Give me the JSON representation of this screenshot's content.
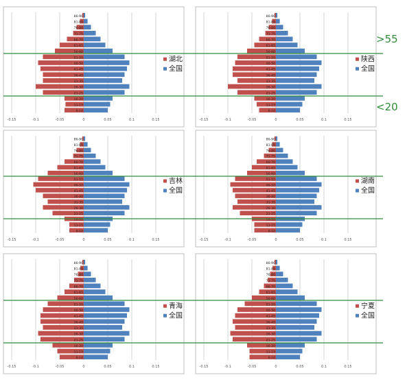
{
  "age_groups": [
    "0-10",
    "11-15",
    "16-20",
    "21-25",
    "26-30",
    "31-35",
    "36-40",
    "41-45",
    "46-50",
    "51-55",
    "56-60",
    "61-65",
    "66-70",
    "71-75",
    "76-80",
    "81-85",
    "86-90"
  ],
  "x_ticks": [
    "-0.15",
    "-0.1",
    "-0.05",
    "0",
    "0.05",
    "0.1",
    "0.15"
  ],
  "annotations": {
    "upper": ">55",
    "lower": "<20"
  },
  "colors": {
    "province": "#c0504d",
    "national": "#4f81bd",
    "ref_line": "#2e8b3a",
    "grid": "#cccccc",
    "frame": "#bfbfbf"
  },
  "chart_data": [
    {
      "type": "bar",
      "orientation": "horizontal-pyramid",
      "xlim": [
        -0.15,
        0.15
      ],
      "series": [
        {
          "name": "湖北",
          "values": [
            -0.04,
            -0.038,
            -0.04,
            -0.085,
            -0.1,
            -0.085,
            -0.085,
            -0.09,
            -0.095,
            -0.085,
            -0.06,
            -0.05,
            -0.035,
            -0.022,
            -0.015,
            -0.008,
            -0.003
          ]
        },
        {
          "name": "全国",
          "values": [
            0.05,
            0.055,
            0.06,
            0.085,
            0.095,
            0.08,
            0.085,
            0.09,
            0.095,
            0.085,
            0.06,
            0.045,
            0.035,
            0.025,
            0.015,
            0.008,
            0.003
          ]
        }
      ]
    },
    {
      "type": "bar",
      "orientation": "horizontal-pyramid",
      "xlim": [
        -0.15,
        0.15
      ],
      "series": [
        {
          "name": "陕西",
          "values": [
            -0.035,
            -0.04,
            -0.045,
            -0.08,
            -0.1,
            -0.08,
            -0.09,
            -0.09,
            -0.085,
            -0.08,
            -0.06,
            -0.045,
            -0.035,
            -0.022,
            -0.015,
            -0.008,
            -0.003
          ]
        },
        {
          "name": "全国",
          "values": [
            0.05,
            0.055,
            0.06,
            0.085,
            0.095,
            0.08,
            0.085,
            0.09,
            0.095,
            0.085,
            0.06,
            0.045,
            0.035,
            0.025,
            0.015,
            0.008,
            0.003
          ]
        }
      ]
    },
    {
      "type": "bar",
      "orientation": "horizontal-pyramid",
      "xlim": [
        -0.15,
        0.15
      ],
      "series": [
        {
          "name": "吉林",
          "values": [
            -0.03,
            -0.03,
            -0.04,
            -0.065,
            -0.085,
            -0.075,
            -0.085,
            -0.1,
            -0.105,
            -0.095,
            -0.075,
            -0.055,
            -0.04,
            -0.022,
            -0.015,
            -0.008,
            -0.003
          ]
        },
        {
          "name": "全国",
          "values": [
            0.05,
            0.055,
            0.06,
            0.085,
            0.095,
            0.08,
            0.085,
            0.09,
            0.095,
            0.085,
            0.06,
            0.045,
            0.035,
            0.025,
            0.015,
            0.008,
            0.003
          ]
        }
      ]
    },
    {
      "type": "bar",
      "orientation": "horizontal-pyramid",
      "xlim": [
        -0.15,
        0.15
      ],
      "series": [
        {
          "name": "湖南",
          "values": [
            -0.045,
            -0.045,
            -0.05,
            -0.075,
            -0.09,
            -0.08,
            -0.085,
            -0.09,
            -0.095,
            -0.085,
            -0.06,
            -0.05,
            -0.04,
            -0.025,
            -0.015,
            -0.008,
            -0.003
          ]
        },
        {
          "name": "全国",
          "values": [
            0.05,
            0.055,
            0.06,
            0.085,
            0.095,
            0.08,
            0.085,
            0.09,
            0.095,
            0.085,
            0.06,
            0.045,
            0.035,
            0.025,
            0.015,
            0.008,
            0.003
          ]
        }
      ]
    },
    {
      "type": "bar",
      "orientation": "horizontal-pyramid",
      "xlim": [
        -0.15,
        0.15
      ],
      "series": [
        {
          "name": "青海",
          "values": [
            -0.05,
            -0.055,
            -0.065,
            -0.09,
            -0.095,
            -0.085,
            -0.09,
            -0.09,
            -0.085,
            -0.075,
            -0.055,
            -0.04,
            -0.03,
            -0.02,
            -0.012,
            -0.007,
            -0.003
          ]
        },
        {
          "name": "全国",
          "values": [
            0.05,
            0.055,
            0.06,
            0.085,
            0.095,
            0.08,
            0.085,
            0.09,
            0.095,
            0.085,
            0.06,
            0.045,
            0.035,
            0.025,
            0.015,
            0.008,
            0.003
          ]
        }
      ]
    },
    {
      "type": "bar",
      "orientation": "horizontal-pyramid",
      "xlim": [
        -0.15,
        0.15
      ],
      "series": [
        {
          "name": "宁夏",
          "values": [
            -0.055,
            -0.055,
            -0.06,
            -0.09,
            -0.095,
            -0.085,
            -0.09,
            -0.085,
            -0.08,
            -0.065,
            -0.05,
            -0.035,
            -0.025,
            -0.017,
            -0.012,
            -0.007,
            -0.003
          ]
        },
        {
          "name": "全国",
          "values": [
            0.05,
            0.055,
            0.06,
            0.085,
            0.095,
            0.08,
            0.085,
            0.09,
            0.095,
            0.085,
            0.06,
            0.045,
            0.035,
            0.025,
            0.015,
            0.008,
            0.003
          ]
        }
      ]
    }
  ]
}
